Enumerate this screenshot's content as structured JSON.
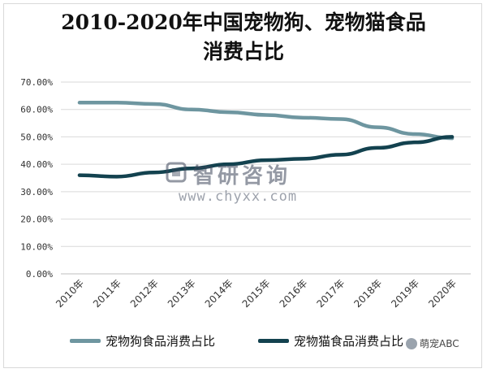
{
  "chart_data": {
    "type": "line",
    "title_line1": "2010-2020年中国宠物狗、宠物猫食品",
    "title_line2": "消费占比",
    "categories": [
      "2010年",
      "2011年",
      "2012年",
      "2013年",
      "2014年",
      "2015年",
      "2016年",
      "2017年",
      "2018年",
      "2019年",
      "2020年"
    ],
    "y_ticks": [
      "0.00%",
      "10.00%",
      "20.00%",
      "30.00%",
      "40.00%",
      "50.00%",
      "60.00%",
      "70.00%"
    ],
    "ylim": [
      0,
      70
    ],
    "grid": true,
    "legend_position": "bottom",
    "series": [
      {
        "name": "宠物狗食品消费占比",
        "color": "#6e96a0",
        "values": [
          62.5,
          62.5,
          62.0,
          60.0,
          59.0,
          58.0,
          57.0,
          56.5,
          53.5,
          51.0,
          49.5
        ]
      },
      {
        "name": "宠物猫食品消费占比",
        "color": "#13424f",
        "values": [
          36.0,
          35.5,
          37.0,
          38.5,
          40.0,
          41.5,
          42.0,
          43.5,
          46.0,
          48.0,
          50.0
        ]
      }
    ]
  },
  "watermark": {
    "brand": "智研咨询",
    "url": "www.chyxx.com"
  },
  "badge": {
    "text": "萌宠ABC"
  }
}
